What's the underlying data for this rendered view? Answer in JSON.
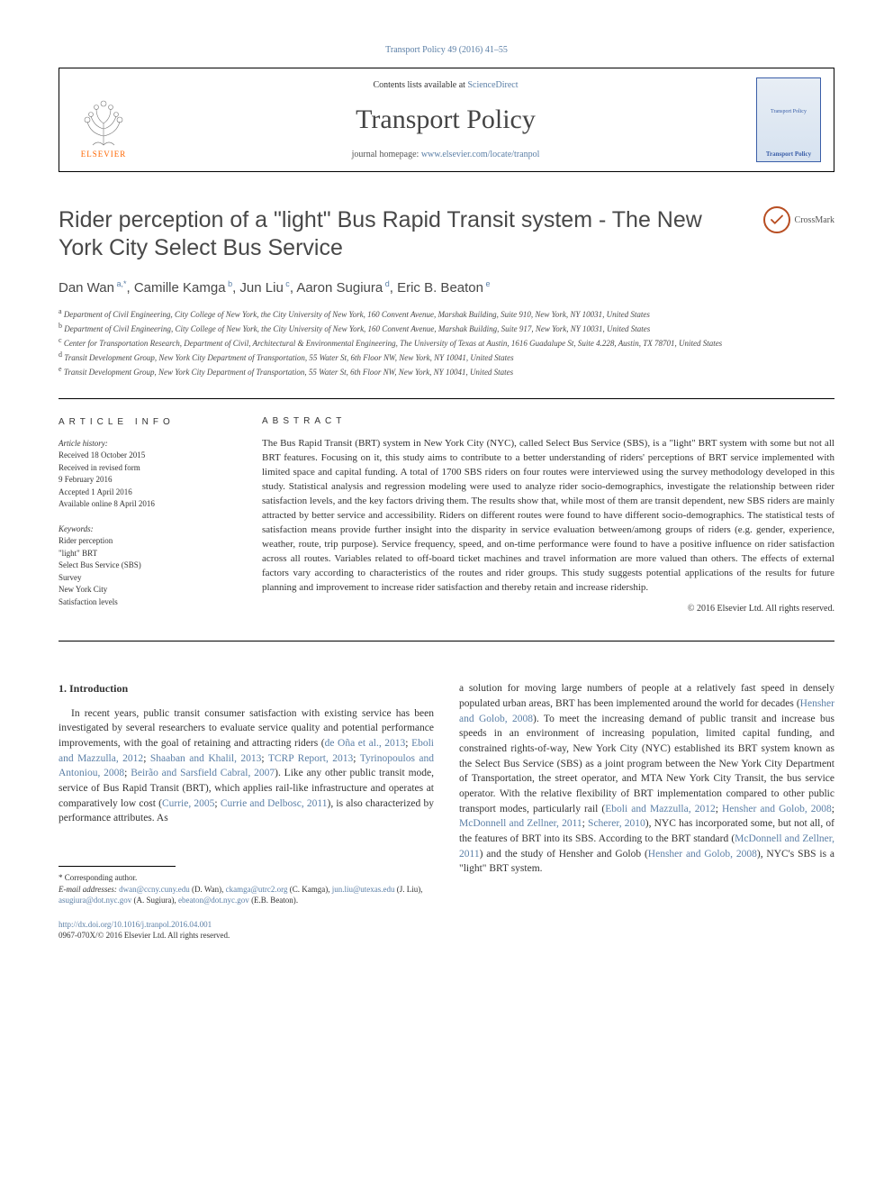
{
  "journal_ref": {
    "text": "Transport Policy 49 (2016) 41–55",
    "color": "#5b7fa6",
    "fontsize": 10
  },
  "header": {
    "contents_prefix": "Contents lists available at ",
    "contents_link": "ScienceDirect",
    "journal_name": "Transport Policy",
    "homepage_prefix": "journal homepage: ",
    "homepage_url": "www.elsevier.com/locate/tranpol",
    "elsevier_label": "ELSEVIER",
    "cover_title_line1": "Transport Policy",
    "cover_label": "Transport Policy"
  },
  "crossmark": {
    "label": "CrossMark"
  },
  "title": "Rider perception of a \"light\" Bus Rapid Transit system - The New York City Select Bus Service",
  "authors_line": "Dan Wan a,*, Camille Kamga b, Jun Liu c, Aaron Sugiura d, Eric B. Beaton e",
  "authors": [
    {
      "name": "Dan Wan",
      "sup": "a,*"
    },
    {
      "name": "Camille Kamga",
      "sup": "b"
    },
    {
      "name": "Jun Liu",
      "sup": "c"
    },
    {
      "name": "Aaron Sugiura",
      "sup": "d"
    },
    {
      "name": "Eric B. Beaton",
      "sup": "e"
    }
  ],
  "affiliations": [
    {
      "sup": "a",
      "text": "Department of Civil Engineering, City College of New York, the City University of New York, 160 Convent Avenue, Marshak Building, Suite 910, New York, NY 10031, United States"
    },
    {
      "sup": "b",
      "text": "Department of Civil Engineering, City College of New York, the City University of New York, 160 Convent Avenue, Marshak Building, Suite 917, New York, NY 10031, United States"
    },
    {
      "sup": "c",
      "text": "Center for Transportation Research, Department of Civil, Architectural & Environmental Engineering, The University of Texas at Austin, 1616 Guadalupe St, Suite 4.228, Austin, TX 78701, United States"
    },
    {
      "sup": "d",
      "text": "Transit Development Group, New York City Department of Transportation, 55 Water St, 6th Floor NW, New York, NY 10041, United States"
    },
    {
      "sup": "e",
      "text": "Transit Development Group, New York City Department of Transportation, 55 Water St, 6th Floor NW, New York, NY 10041, United States"
    }
  ],
  "article_info": {
    "heading": "ARTICLE INFO",
    "history_label": "Article history:",
    "history": [
      "Received 18 October 2015",
      "Received in revised form",
      "9 February 2016",
      "Accepted 1 April 2016",
      "Available online 8 April 2016"
    ],
    "keywords_label": "Keywords:",
    "keywords": [
      "Rider perception",
      "\"light\" BRT",
      "Select Bus Service (SBS)",
      "Survey",
      "New York City",
      "Satisfaction levels"
    ]
  },
  "abstract": {
    "heading": "ABSTRACT",
    "text": "The Bus Rapid Transit (BRT) system in New York City (NYC), called Select Bus Service (SBS), is a \"light\" BRT system with some but not all BRT features. Focusing on it, this study aims to contribute to a better understanding of riders' perceptions of BRT service implemented with limited space and capital funding. A total of 1700 SBS riders on four routes were interviewed using the survey methodology developed in this study. Statistical analysis and regression modeling were used to analyze rider socio-demographics, investigate the relationship between rider satisfaction levels, and the key factors driving them. The results show that, while most of them are transit dependent, new SBS riders are mainly attracted by better service and accessibility. Riders on different routes were found to have different socio-demographics. The statistical tests of satisfaction means provide further insight into the disparity in service evaluation between/among groups of riders (e.g. gender, experience, weather, route, trip purpose). Service frequency, speed, and on-time performance were found to have a positive influence on rider satisfaction across all routes. Variables related to off-board ticket machines and travel information are more valued than others. The effects of external factors vary according to characteristics of the routes and rider groups. This study suggests potential applications of the results for future planning and improvement to increase rider satisfaction and thereby retain and increase ridership.",
    "copyright": "© 2016 Elsevier Ltd. All rights reserved."
  },
  "body": {
    "heading": "1.  Introduction",
    "col1_html": "In recent years, public transit consumer satisfaction with existing service has been investigated by several researchers to evaluate service quality and potential performance improvements, with the goal of retaining and attracting riders (<span class='cite-link'>de Oña et al., 2013</span>; <span class='cite-link'>Eboli and Mazzulla, 2012</span>; <span class='cite-link'>Shaaban and Khalil, 2013</span>; <span class='cite-link'>TCRP Report, 2013</span>; <span class='cite-link'>Tyrinopoulos and Antoniou, 2008</span>; <span class='cite-link'>Beirão and Sarsfield Cabral, 2007</span>). Like any other public transit mode, service of Bus Rapid Transit (BRT), which applies rail-like infrastructure and operates at comparatively low cost (<span class='cite-link'>Currie, 2005</span>; <span class='cite-link'>Currie and Delbosc, 2011</span>), is also characterized by performance attributes. As",
    "col2_html": "a solution for moving large numbers of people at a relatively fast speed in densely populated urban areas, BRT has been implemented around the world for decades (<span class='cite-link'>Hensher and Golob, 2008</span>). To meet the increasing demand of public transit and increase bus speeds in an environment of increasing population, limited capital funding, and constrained rights-of-way, New York City (NYC) established its BRT system known as the Select Bus Service (SBS) as a joint program between the New York City Department of Transportation, the street operator, and MTA New York City Transit, the bus service operator. With the relative flexibility of BRT implementation compared to other public transport modes, particularly rail (<span class='cite-link'>Eboli and Mazzulla, 2012</span>; <span class='cite-link'>Hensher and Golob, 2008</span>; <span class='cite-link'>McDonnell and Zellner, 2011</span>; <span class='cite-link'>Scherer, 2010</span>), NYC has incorporated some, but not all, of the features of BRT into its SBS. According to the BRT standard (<span class='cite-link'>McDonnell and Zellner, 2011</span>) and the study of Hensher and Golob (<span class='cite-link'>Hensher and Golob, 2008</span>), NYC's SBS is a \"light\" BRT system."
  },
  "footnotes": {
    "corresponding": "* Corresponding author.",
    "emails_label": "E-mail addresses:",
    "emails": [
      {
        "addr": "dwan@ccny.cuny.edu",
        "who": "(D. Wan)"
      },
      {
        "addr": "ckamga@utrc2.org",
        "who": "(C. Kamga)"
      },
      {
        "addr": "jun.liu@utexas.edu",
        "who": "(J. Liu)"
      },
      {
        "addr": "asugiura@dot.nyc.gov",
        "who": "(A. Sugiura)"
      },
      {
        "addr": "ebeaton@dot.nyc.gov",
        "who": "(E.B. Beaton)"
      }
    ]
  },
  "doi": {
    "url": "http://dx.doi.org/10.1016/j.tranpol.2016.04.001",
    "issn_line": "0967-070X/© 2016 Elsevier Ltd. All rights reserved."
  },
  "colors": {
    "link": "#5b7fa6",
    "elsevier_orange": "#ff6600",
    "text": "#333333",
    "title_gray": "#484848",
    "crossmark_ring": "#b84e22",
    "cover_border": "#3a5ea8"
  },
  "typography": {
    "title_fontsize": 25,
    "journal_name_fontsize": 30,
    "body_fontsize": 11.5,
    "abstract_fontsize": 11,
    "meta_fontsize": 9,
    "affiliation_fontsize": 9
  }
}
